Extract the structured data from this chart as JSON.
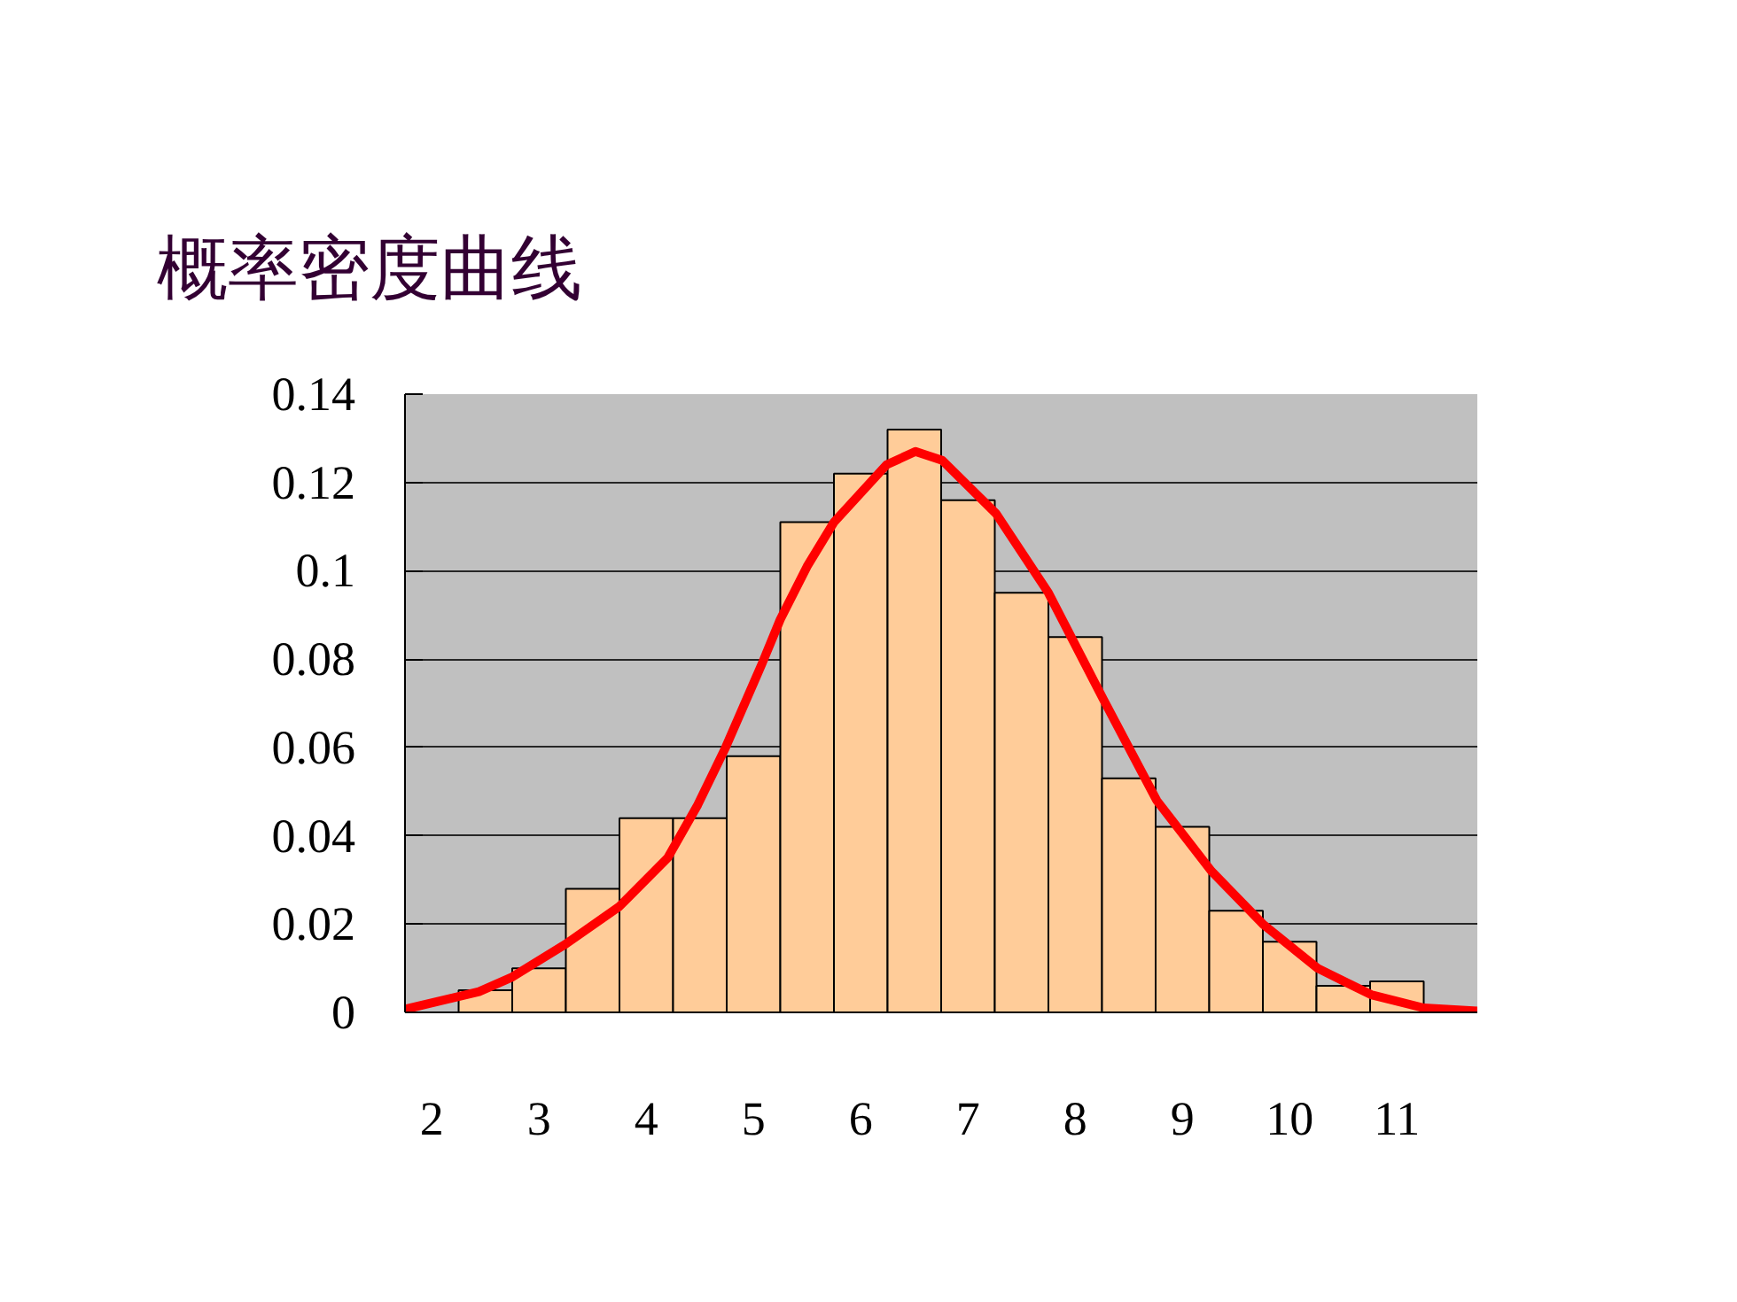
{
  "chart_data": {
    "type": "histogram",
    "title": "概率密度曲线",
    "xlim": [
      1.75,
      11.75
    ],
    "xticks": [
      2,
      3,
      4,
      5,
      6,
      7,
      8,
      9,
      10,
      11
    ],
    "ylim": [
      0,
      0.14
    ],
    "yticks": [
      0,
      0.02,
      0.04,
      0.06,
      0.08,
      0.1,
      0.12,
      0.14
    ],
    "grid": "y",
    "series": [
      {
        "type": "histogram",
        "color": "#ffcc99",
        "bins": [
          1.75,
          2.25,
          2.75,
          3.25,
          3.75,
          4.25,
          4.75,
          5.25,
          5.75,
          6.25,
          6.75,
          7.25,
          7.75,
          8.25,
          8.75,
          9.25,
          9.75,
          10.25,
          10.75,
          11.25,
          11.75
        ],
        "values": [
          0,
          0.005,
          0.01,
          0.028,
          0.044,
          0.044,
          0.058,
          0.111,
          0.122,
          0.132,
          0.116,
          0.095,
          0.085,
          0.053,
          0.042,
          0.023,
          0.016,
          0.006,
          0.007,
          0
        ]
      },
      {
        "type": "line",
        "color": "#ff0000",
        "x": [
          1.75,
          2.44,
          2.75,
          3.25,
          3.75,
          4.2,
          4.48,
          4.74,
          5.08,
          5.25,
          5.5,
          5.75,
          6.24,
          6.51,
          6.76,
          7.26,
          7.75,
          8.26,
          8.76,
          9.27,
          9.75,
          10.26,
          10.76,
          11.25,
          11.75
        ],
        "values": [
          0.0007,
          0.0047,
          0.008,
          0.0155,
          0.024,
          0.035,
          0.047,
          0.06,
          0.079,
          0.089,
          0.101,
          0.111,
          0.124,
          0.127,
          0.125,
          0.113,
          0.095,
          0.071,
          0.048,
          0.032,
          0.02,
          0.01,
          0.004,
          0.001,
          0.0003
        ]
      }
    ]
  }
}
